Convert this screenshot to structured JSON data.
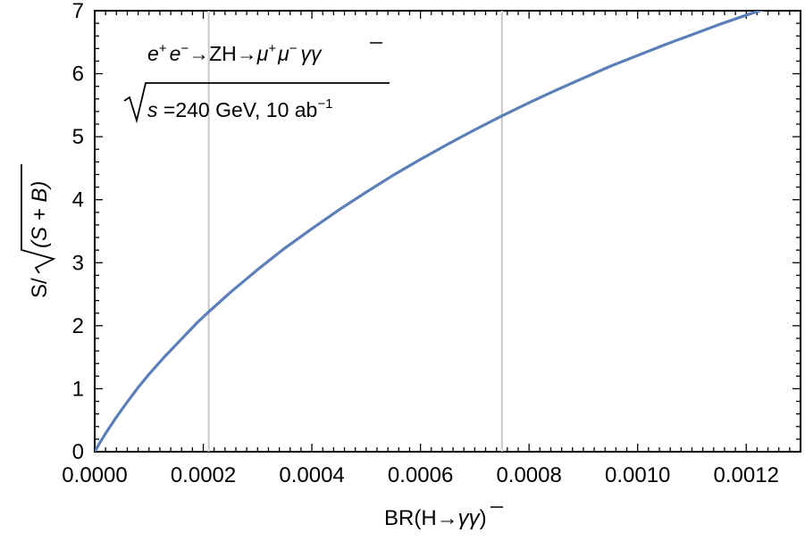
{
  "chart_data": {
    "type": "line",
    "xlabel": {
      "prefix": "BR(H→",
      "gamma": "γ",
      "gammabar": "γ",
      "suffix": ")"
    },
    "ylabel": {
      "prefix": "S/",
      "body": "(S + B)"
    },
    "xlim": [
      0,
      0.0013
    ],
    "ylim": [
      0,
      7
    ],
    "xticks": [
      0,
      0.0002,
      0.0004,
      0.0006,
      0.0008,
      0.001,
      0.0012
    ],
    "xtick_labels": [
      "0.0000",
      "0.0002",
      "0.0004",
      "0.0006",
      "0.0008",
      "0.0010",
      "0.0012"
    ],
    "yticks": [
      0,
      1,
      2,
      3,
      4,
      5,
      6,
      7
    ],
    "ytick_labels": [
      "0",
      "1",
      "2",
      "3",
      "4",
      "5",
      "6",
      "7"
    ],
    "vertical_lines": [
      0.00021,
      0.00075
    ],
    "series": [
      {
        "color": "#5b7fb8",
        "x": [
          0,
          1e-05,
          2e-05,
          4e-05,
          6e-05,
          8e-05,
          0.0001,
          0.00013,
          0.00016,
          0.00019,
          0.00021,
          0.00025,
          0.0003,
          0.00035,
          0.0004,
          0.00045,
          0.0005,
          0.00055,
          0.0006,
          0.00065,
          0.0007,
          0.00075,
          0.0008,
          0.00085,
          0.0009,
          0.00095,
          0.001,
          0.00105,
          0.0011,
          0.00115,
          0.0012,
          0.00125,
          0.0013
        ],
        "y": [
          0,
          0.15,
          0.29,
          0.55,
          0.79,
          1.02,
          1.23,
          1.52,
          1.79,
          2.06,
          2.22,
          2.53,
          2.89,
          3.23,
          3.54,
          3.84,
          4.12,
          4.39,
          4.64,
          4.88,
          5.11,
          5.33,
          5.54,
          5.74,
          5.93,
          6.12,
          6.29,
          6.46,
          6.62,
          6.78,
          6.93,
          7.07,
          7.21
        ]
      }
    ],
    "annotation": {
      "line1": {
        "e": "e",
        "plus": "+",
        "e2": "e",
        "minus": "−",
        "mid": "→ZH→",
        "mu": "μ",
        "mu_plus": "+",
        "mu2": "μ",
        "mu_minus": "−",
        "g": "γ",
        "gbar": "γ"
      },
      "line2": {
        "s": "s",
        "rest": " =240 GeV, 10 ab",
        "exp": "−1"
      }
    },
    "grid": false,
    "legend": "none"
  }
}
